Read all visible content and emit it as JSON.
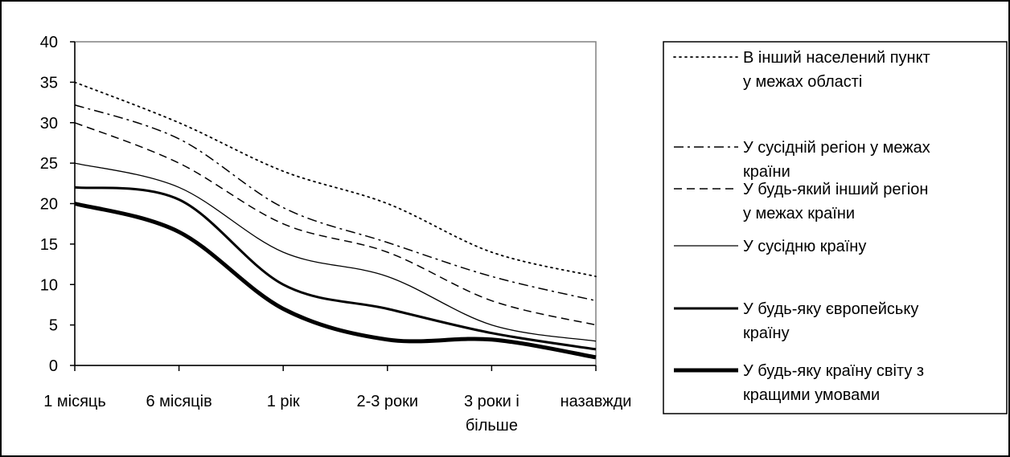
{
  "chart_data": {
    "type": "line",
    "title": "",
    "xlabel": "",
    "ylabel": "",
    "ylim": [
      0,
      40
    ],
    "yticks": [
      0,
      5,
      10,
      15,
      20,
      25,
      30,
      35,
      40
    ],
    "grid": false,
    "legend_position": "right",
    "x_tick_labels": [
      [
        "1 місяць"
      ],
      [
        "6 місяців"
      ],
      [
        "1 рік"
      ],
      [
        "2-3 роки"
      ],
      [
        "3 роки і",
        "більше"
      ],
      [
        "назавжди"
      ]
    ],
    "series": [
      {
        "name": "В інший населений пункт у межах області",
        "legend_lines": [
          "В інший населений пункт",
          "у межах області"
        ],
        "style": "dotted",
        "values": [
          35,
          30,
          24,
          20,
          14,
          11
        ]
      },
      {
        "name": "У сусідній регіон у межах країни",
        "legend_lines": [
          "У сусідній регіон у межах",
          "країни"
        ],
        "style": "dashdot",
        "values": [
          32.2,
          28,
          19.5,
          15.2,
          11,
          8
        ]
      },
      {
        "name": "У будь-який інший регіон у межах країни",
        "legend_lines": [
          "У будь-який інший регіон",
          "у межах країни"
        ],
        "style": "dashed",
        "values": [
          30,
          25,
          17.5,
          14,
          8,
          5
        ]
      },
      {
        "name": "У сусідню країну",
        "legend_lines": [
          "У сусідню країну"
        ],
        "style": "thin",
        "values": [
          25,
          22,
          14,
          11,
          5,
          3
        ]
      },
      {
        "name": "У будь-яку європейську країну",
        "legend_lines": [
          "У будь-яку європейську",
          "країну"
        ],
        "style": "medium",
        "values": [
          22,
          20.5,
          10,
          7,
          4,
          2
        ]
      },
      {
        "name": "У будь-яку країну світу з кращими умовами",
        "legend_lines": [
          "У будь-яку країну світу з",
          "кращими умовами"
        ],
        "style": "thick",
        "values": [
          20,
          16.5,
          7,
          3.2,
          3.2,
          1
        ]
      }
    ]
  }
}
